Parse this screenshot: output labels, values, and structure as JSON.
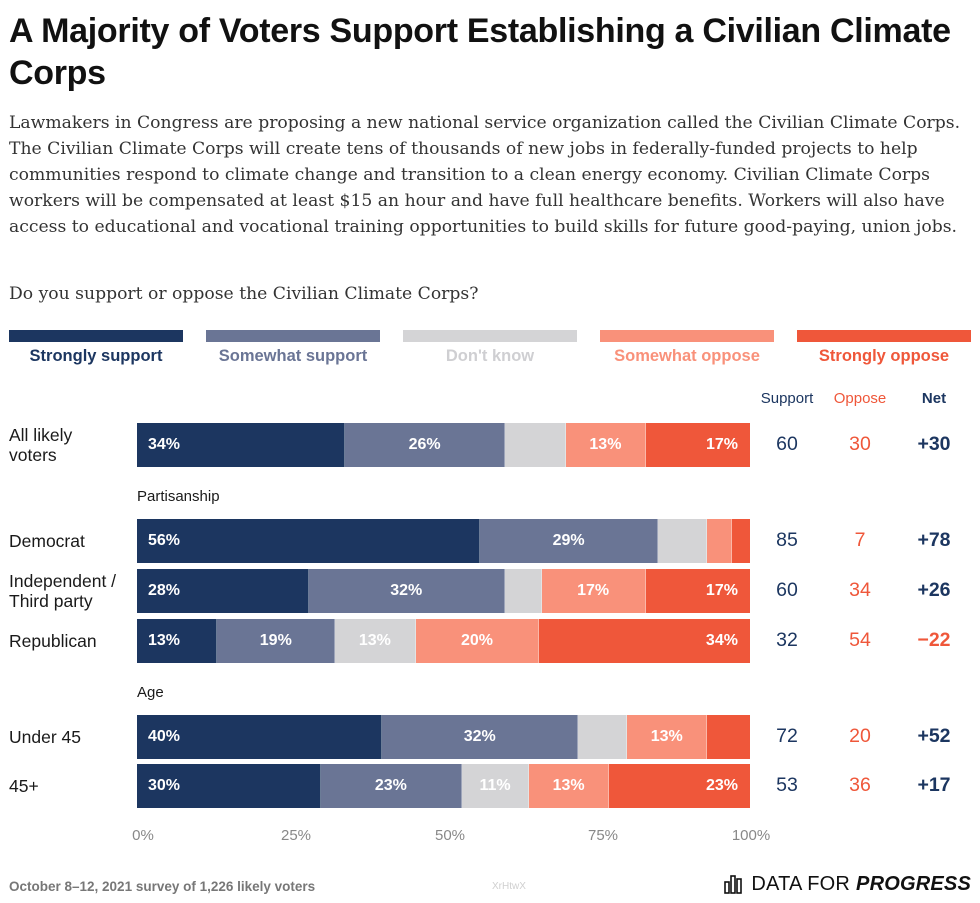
{
  "title": "A Majority of Voters Support Establishing a Civilian Climate Corps",
  "intro": "Lawmakers in Congress are proposing a new national service organization called the Civilian Climate Corps. The Civilian Climate Corps will create tens of thousands of new jobs in federally-funded projects to help communities respond to climate change and transition to a clean energy economy. Civilian Climate Corps workers will be compensated at least $15 an hour and have full healthcare benefits. Workers will also have access to educational and vocational training opportunities to build skills for future good-paying, union jobs.",
  "question": "Do you support or oppose the Civilian Climate Corps?",
  "colors": {
    "strongly_support": "#1c3660",
    "somewhat_support": "#6a7595",
    "dont_know": "#d4d4d6",
    "somewhat_oppose": "#f9917a",
    "strongly_oppose": "#ef573a",
    "support_text": "#1c3660",
    "oppose_text": "#ef573a"
  },
  "legend": [
    {
      "label": "Strongly support",
      "color": "#1c3660",
      "text_color": "#1c3660"
    },
    {
      "label": "Somewhat support",
      "color": "#6a7595",
      "text_color": "#6a7595"
    },
    {
      "label": "Don't know",
      "color": "#d4d4d6",
      "text_color": "#cfcfd2"
    },
    {
      "label": "Somewhat oppose",
      "color": "#f9917a",
      "text_color": "#f9917a"
    },
    {
      "label": "Strongly oppose",
      "color": "#ef573a",
      "text_color": "#ef573a"
    }
  ],
  "columns": {
    "support": "Support",
    "oppose": "Oppose",
    "net": "Net"
  },
  "sections": {
    "partisanship": "Partisanship",
    "age": "Age"
  },
  "chart_data": {
    "type": "bar",
    "orientation": "horizontal-stacked-100",
    "title": "A Majority of Voters Support Establishing a Civilian Climate Corps",
    "series_names": [
      "Strongly support",
      "Somewhat support",
      "Don't know",
      "Somewhat oppose",
      "Strongly oppose"
    ],
    "categories": [
      "All likely voters",
      "Democrat",
      "Independent / Third party",
      "Republican",
      "Under 45",
      "45+"
    ],
    "rows": [
      {
        "label": "All likely voters",
        "values": [
          34,
          26,
          10,
          13,
          17
        ],
        "labels": [
          "34%",
          "26%",
          "",
          "13%",
          "17%"
        ],
        "support": "60",
        "oppose": "30",
        "net": "+30"
      },
      {
        "label": "Democrat",
        "values": [
          56,
          29,
          8,
          4,
          3
        ],
        "labels": [
          "56%",
          "29%",
          "",
          "",
          ""
        ],
        "support": "85",
        "oppose": "7",
        "net": "+78"
      },
      {
        "label": "Independent / Third party",
        "values": [
          28,
          32,
          6,
          17,
          17
        ],
        "labels": [
          "28%",
          "32%",
          "",
          "17%",
          "17%"
        ],
        "support": "60",
        "oppose": "34",
        "net": "+26"
      },
      {
        "label": "Republican",
        "values": [
          13,
          19,
          13,
          20,
          34
        ],
        "labels": [
          "13%",
          "19%",
          "13%",
          "20%",
          "34%"
        ],
        "support": "32",
        "oppose": "54",
        "net": "−22"
      },
      {
        "label": "Under 45",
        "values": [
          40,
          32,
          8,
          13,
          7
        ],
        "labels": [
          "40%",
          "32%",
          "",
          "13%",
          ""
        ],
        "support": "72",
        "oppose": "20",
        "net": "+52"
      },
      {
        "label": "45+",
        "values": [
          30,
          23,
          11,
          13,
          23
        ],
        "labels": [
          "30%",
          "23%",
          "11%",
          "13%",
          "23%"
        ],
        "support": "53",
        "oppose": "36",
        "net": "+17"
      }
    ],
    "xlim": [
      0,
      100
    ],
    "x_ticks": [
      "0%",
      "25%",
      "50%",
      "75%",
      "100%"
    ]
  },
  "footer": "October 8–12, 2021 survey of 1,226 likely voters",
  "watermark": "XrHtwX",
  "logo": {
    "part1": "DATA FOR",
    "part2": "PROGRESS"
  }
}
